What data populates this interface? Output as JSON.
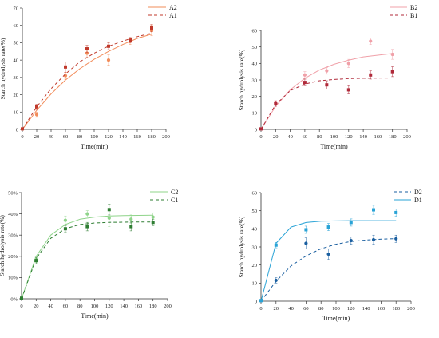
{
  "chart_data": [
    {
      "type": "scatter",
      "xlabel": "Time(min)",
      "ylabel": "Starch hydrolysis rate(%)",
      "xlim": [
        0,
        200
      ],
      "ylim": [
        0,
        70
      ],
      "xticks": [
        0,
        20,
        40,
        60,
        80,
        100,
        120,
        140,
        160,
        180,
        200
      ],
      "yticks": [
        0,
        10,
        20,
        30,
        40,
        50,
        60,
        70
      ],
      "legend_position": "top-right",
      "series": [
        {
          "name": "A2",
          "color": "#f28c5a",
          "line": "solid",
          "marker": "circle",
          "x": [
            0,
            20,
            60,
            90,
            120,
            150,
            180
          ],
          "y": [
            0.3,
            8.5,
            31,
            44,
            40,
            51,
            57
          ],
          "err": [
            0.5,
            1.5,
            2,
            2.5,
            3,
            2,
            3
          ],
          "fit": [
            [
              0,
              0
            ],
            [
              20,
              11
            ],
            [
              40,
              20.5
            ],
            [
              60,
              28.5
            ],
            [
              80,
              35
            ],
            [
              100,
              40.5
            ],
            [
              120,
              45
            ],
            [
              140,
              49
            ],
            [
              160,
              52.5
            ],
            [
              180,
              55
            ]
          ]
        },
        {
          "name": "A1",
          "color": "#c0392b",
          "line": "dashed",
          "marker": "square",
          "x": [
            0,
            20,
            60,
            90,
            120,
            150,
            180
          ],
          "y": [
            0.3,
            13,
            36,
            46.5,
            48,
            51.5,
            58.5
          ],
          "err": [
            0.5,
            1.5,
            3,
            2,
            2,
            1.5,
            2
          ],
          "fit": [
            [
              0,
              0
            ],
            [
              20,
              13
            ],
            [
              40,
              23.5
            ],
            [
              60,
              32
            ],
            [
              80,
              39
            ],
            [
              100,
              44
            ],
            [
              120,
              48
            ],
            [
              140,
              51
            ],
            [
              160,
              53.5
            ],
            [
              180,
              55.5
            ]
          ]
        }
      ]
    },
    {
      "type": "scatter",
      "xlabel": "Time(min)",
      "ylabel": "Starch hydrolysis rate(%)",
      "xlim": [
        0,
        200
      ],
      "ylim": [
        0,
        60
      ],
      "xticks": [
        0,
        20,
        40,
        60,
        80,
        100,
        120,
        140,
        160,
        180,
        200
      ],
      "yticks": [
        0,
        10,
        20,
        30,
        40,
        50,
        60
      ],
      "legend_position": "top-right",
      "series": [
        {
          "name": "B2",
          "color": "#f0a0a8",
          "line": "solid",
          "marker": "circle",
          "x": [
            0,
            20,
            60,
            90,
            120,
            150,
            180
          ],
          "y": [
            0.3,
            16,
            33,
            35.5,
            40,
            53.5,
            45.5
          ],
          "err": [
            0.5,
            1.5,
            2,
            2,
            2.5,
            2,
            3
          ],
          "fit": [
            [
              0,
              0
            ],
            [
              20,
              14
            ],
            [
              40,
              24
            ],
            [
              60,
              31
            ],
            [
              80,
              36
            ],
            [
              100,
              39.5
            ],
            [
              120,
              42
            ],
            [
              140,
              44
            ],
            [
              160,
              45
            ],
            [
              180,
              46
            ]
          ]
        },
        {
          "name": "B1",
          "color": "#b02a3a",
          "line": "dashed",
          "marker": "square",
          "x": [
            0,
            20,
            60,
            90,
            120,
            150,
            180
          ],
          "y": [
            0.3,
            15.5,
            28.5,
            27,
            24,
            33,
            35
          ],
          "err": [
            0.5,
            1.5,
            2,
            2.5,
            2.5,
            2.5,
            3
          ],
          "fit": [
            [
              0,
              0
            ],
            [
              20,
              15
            ],
            [
              40,
              23.5
            ],
            [
              60,
              27.5
            ],
            [
              80,
              29.5
            ],
            [
              100,
              30.3
            ],
            [
              120,
              30.8
            ],
            [
              140,
              31
            ],
            [
              160,
              31.1
            ],
            [
              180,
              31.2
            ]
          ]
        }
      ]
    },
    {
      "type": "scatter",
      "xlabel": "Time(min)",
      "ylabel": "Starch hydrolysis rate(%)",
      "xlim": [
        0,
        200
      ],
      "ylim": [
        0,
        50
      ],
      "xticks": [
        0,
        20,
        40,
        60,
        80,
        100,
        120,
        140,
        160,
        180,
        200
      ],
      "yticks": [
        0,
        10,
        20,
        30,
        40,
        50
      ],
      "y_tick_suffix": "%",
      "legend_position": "top-right",
      "series": [
        {
          "name": "C2",
          "color": "#8fd48a",
          "line": "solid",
          "marker": "circle",
          "x": [
            0,
            20,
            60,
            90,
            120,
            150,
            180
          ],
          "y": [
            0.3,
            18.5,
            37,
            40,
            38,
            37.5,
            38.5
          ],
          "err": [
            0.5,
            1.5,
            2,
            1.5,
            4,
            2,
            2
          ],
          "fit": [
            [
              0,
              0
            ],
            [
              20,
              20
            ],
            [
              40,
              30
            ],
            [
              60,
              35
            ],
            [
              80,
              37.5
            ],
            [
              100,
              38.5
            ],
            [
              120,
              39
            ],
            [
              140,
              39.2
            ],
            [
              160,
              39.3
            ],
            [
              180,
              39.4
            ]
          ]
        },
        {
          "name": "C1",
          "color": "#2e7d32",
          "line": "dashed",
          "marker": "square",
          "x": [
            0,
            20,
            60,
            90,
            120,
            150,
            180
          ],
          "y": [
            0.3,
            18,
            33,
            34,
            42,
            34,
            36
          ],
          "err": [
            0.5,
            1.5,
            1.5,
            2,
            2.5,
            2,
            1.5
          ],
          "fit": [
            [
              0,
              0
            ],
            [
              20,
              19
            ],
            [
              40,
              28.5
            ],
            [
              60,
              33
            ],
            [
              80,
              35
            ],
            [
              100,
              35.7
            ],
            [
              120,
              36
            ],
            [
              140,
              36.1
            ],
            [
              160,
              36.2
            ],
            [
              180,
              36.2
            ]
          ]
        }
      ]
    },
    {
      "type": "scatter",
      "xlabel": "Time(min)",
      "ylabel": "Starch hydrolysis rate(%)",
      "xlim": [
        0,
        200
      ],
      "ylim": [
        0,
        60
      ],
      "xticks": [
        0,
        20,
        40,
        60,
        80,
        100,
        120,
        140,
        160,
        180,
        200
      ],
      "yticks": [
        0,
        10,
        20,
        30,
        40,
        50,
        60
      ],
      "legend_position": "top-right",
      "series": [
        {
          "name": "D2",
          "color": "#1a5fa0",
          "line": "dashed",
          "marker": "circle",
          "x": [
            0,
            20,
            60,
            90,
            120,
            150,
            180
          ],
          "y": [
            0.3,
            11.5,
            32,
            26,
            33.5,
            34,
            34.5
          ],
          "err": [
            0.5,
            1.5,
            3,
            3,
            2,
            2.5,
            2
          ],
          "fit": [
            [
              0,
              0
            ],
            [
              20,
              11
            ],
            [
              40,
              19.5
            ],
            [
              60,
              25
            ],
            [
              80,
              29
            ],
            [
              100,
              31.5
            ],
            [
              120,
              33
            ],
            [
              140,
              33.8
            ],
            [
              160,
              34.3
            ],
            [
              180,
              34.6
            ]
          ]
        },
        {
          "name": "D1",
          "color": "#29a3d6",
          "line": "solid",
          "marker": "square",
          "x": [
            0,
            20,
            60,
            90,
            120,
            150,
            180
          ],
          "y": [
            0.3,
            31,
            39.5,
            41,
            43.5,
            50.5,
            49
          ],
          "err": [
            0.5,
            1.5,
            2,
            2,
            2,
            2.5,
            2
          ],
          "fit": [
            [
              0,
              0
            ],
            [
              20,
              32
            ],
            [
              40,
              41
            ],
            [
              60,
              43.5
            ],
            [
              80,
              44.2
            ],
            [
              100,
              44.4
            ],
            [
              120,
              44.5
            ],
            [
              140,
              44.5
            ],
            [
              160,
              44.5
            ],
            [
              180,
              44.5
            ]
          ]
        }
      ]
    }
  ]
}
